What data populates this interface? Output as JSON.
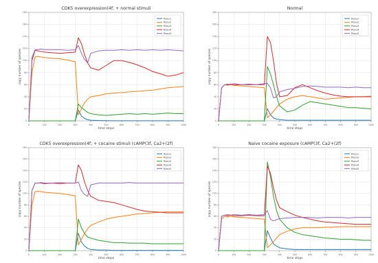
{
  "figure": {
    "colors": {
      "Rbsu1": "#1f77b4",
      "Rbsu2": "#ff7f0e",
      "Rbsu3": "#2ca02c",
      "Rbsu4": "#d62728",
      "Rbsu5": "#9467bd"
    }
  },
  "chart_data": [
    {
      "type": "line",
      "title": "CDK5 overexpression(4f; + normal stimuli",
      "xlabel": "time steps",
      "ylabel": "copy number of species",
      "xlim": [
        0,
        1000
      ],
      "ylim": [
        0,
        180
      ],
      "grid": true,
      "legend_position": "top-right",
      "x": [
        0,
        20,
        40,
        60,
        80,
        100,
        150,
        200,
        250,
        300,
        320,
        340,
        360,
        380,
        400,
        450,
        500,
        550,
        600,
        650,
        700,
        750,
        800,
        850,
        900,
        950,
        1000
      ],
      "series": [
        {
          "name": "Rbsu1",
          "values": [
            0,
            0,
            0,
            0,
            0,
            0,
            0,
            0,
            0,
            0,
            18,
            8,
            4,
            2,
            1,
            0.5,
            0.3,
            0.2,
            0.2,
            0.2,
            0.2,
            0.2,
            0.2,
            0.2,
            0.2,
            0.2,
            0.2
          ]
        },
        {
          "name": "Rbsu2",
          "values": [
            0,
            80,
            106,
            107,
            106,
            105,
            104,
            103,
            101,
            98,
            10,
            20,
            30,
            36,
            40,
            42,
            45,
            46,
            47,
            48,
            49,
            50,
            51,
            53,
            55,
            56,
            57
          ]
        },
        {
          "name": "Rbsu3",
          "values": [
            0,
            0,
            0,
            0,
            0,
            0,
            0,
            0,
            0,
            0,
            28,
            22,
            18,
            14,
            12,
            10,
            9,
            10,
            11,
            12,
            11,
            12,
            11,
            12,
            13,
            12,
            12
          ]
        },
        {
          "name": "Rbsu4",
          "values": [
            0,
            100,
            117,
            116,
            115,
            114,
            113,
            112,
            113,
            114,
            138,
            128,
            110,
            96,
            88,
            84,
            92,
            100,
            100,
            97,
            93,
            88,
            82,
            78,
            74,
            76,
            80
          ]
        },
        {
          "name": "Rbsu5",
          "values": [
            0,
            105,
            118,
            118,
            119,
            118,
            118,
            118,
            117,
            118,
            125,
            112,
            102,
            96,
            112,
            116,
            117,
            117,
            118,
            117,
            118,
            117,
            118,
            117,
            118,
            117,
            116
          ]
        }
      ]
    },
    {
      "type": "line",
      "title": "Normal",
      "xlabel": "time steps",
      "ylabel": "copy number of species",
      "xlim": [
        0,
        1000
      ],
      "ylim": [
        0,
        180
      ],
      "grid": true,
      "legend_position": "top-right",
      "x": [
        0,
        20,
        40,
        60,
        80,
        100,
        150,
        200,
        250,
        300,
        320,
        340,
        360,
        380,
        400,
        450,
        500,
        550,
        600,
        650,
        700,
        750,
        800,
        850,
        900,
        950,
        1000
      ],
      "series": [
        {
          "name": "Rbsu1",
          "values": [
            0,
            0,
            0,
            0,
            0,
            0,
            0,
            0,
            0,
            0,
            20,
            10,
            5,
            3,
            2,
            1,
            1,
            1,
            1,
            1,
            1,
            1,
            1,
            1,
            1,
            1,
            1
          ]
        },
        {
          "name": "Rbsu2",
          "values": [
            0,
            55,
            60,
            59,
            60,
            59,
            58,
            57,
            56,
            55,
            5,
            10,
            16,
            22,
            28,
            36,
            40,
            42,
            40,
            38,
            36,
            37,
            38,
            39,
            40,
            40,
            41
          ]
        },
        {
          "name": "Rbsu3",
          "values": [
            0,
            0,
            0,
            0,
            0,
            0,
            0,
            0,
            0,
            0,
            90,
            78,
            60,
            40,
            25,
            15,
            18,
            26,
            32,
            30,
            28,
            26,
            24,
            22,
            22,
            21,
            20
          ]
        },
        {
          "name": "Rbsu4",
          "values": [
            0,
            55,
            60,
            60,
            61,
            60,
            60,
            60,
            60,
            60,
            140,
            130,
            100,
            62,
            40,
            42,
            55,
            60,
            55,
            50,
            46,
            43,
            41,
            40,
            40,
            40,
            40
          ]
        },
        {
          "name": "Rbsu5",
          "values": [
            0,
            55,
            60,
            61,
            60,
            62,
            60,
            61,
            60,
            62,
            62,
            55,
            38,
            40,
            48,
            52,
            54,
            57,
            58,
            57,
            56,
            56,
            56,
            55,
            56,
            55,
            55
          ]
        }
      ]
    },
    {
      "type": "line",
      "title": "CDK5 overexpression(4f; + cocaine stimuli (cAMP(3f, Ca2+(2f)",
      "xlabel": "time steps",
      "ylabel": "copy number of species",
      "xlim": [
        0,
        1000
      ],
      "ylim": [
        0,
        180
      ],
      "grid": true,
      "legend_position": "top-right",
      "x": [
        0,
        20,
        40,
        60,
        80,
        100,
        150,
        200,
        250,
        300,
        320,
        340,
        360,
        380,
        400,
        450,
        500,
        550,
        600,
        650,
        700,
        750,
        800,
        850,
        900,
        950,
        1000
      ],
      "series": [
        {
          "name": "Rbsu1",
          "values": [
            0,
            0,
            0,
            0,
            0,
            0,
            0,
            0,
            0,
            0,
            30,
            15,
            8,
            4,
            2,
            1,
            1,
            0.5,
            0.5,
            0.5,
            0.5,
            0.5,
            0.5,
            0.5,
            0.5,
            0.5,
            0.5
          ]
        },
        {
          "name": "Rbsu2",
          "values": [
            0,
            80,
            103,
            104,
            103,
            102,
            101,
            100,
            98,
            96,
            10,
            20,
            30,
            38,
            44,
            50,
            55,
            58,
            60,
            62,
            64,
            65,
            66,
            67,
            68,
            68,
            68
          ]
        },
        {
          "name": "Rbsu3",
          "values": [
            0,
            0,
            0,
            0,
            0,
            0,
            0,
            0,
            0,
            0,
            55,
            40,
            30,
            24,
            22,
            18,
            16,
            14,
            14,
            13,
            13,
            13,
            12,
            12,
            12,
            12,
            12
          ]
        },
        {
          "name": "Rbsu4",
          "values": [
            0,
            105,
            118,
            118,
            118,
            117,
            118,
            117,
            118,
            118,
            150,
            140,
            120,
            105,
            95,
            88,
            86,
            84,
            80,
            76,
            72,
            69,
            68,
            67,
            66,
            66,
            66
          ]
        },
        {
          "name": "Rbsu5",
          "values": [
            0,
            105,
            118,
            118,
            119,
            118,
            118,
            119,
            118,
            118,
            120,
            105,
            98,
            95,
            115,
            118,
            118,
            118,
            118,
            119,
            118,
            118,
            118,
            118,
            118,
            118,
            118
          ]
        }
      ]
    },
    {
      "type": "line",
      "title": "Naive cocaine exposure (cAMP(3f, Ca2+(2f)",
      "xlabel": "time steps",
      "ylabel": "copy number of species",
      "xlim": [
        0,
        1000
      ],
      "ylim": [
        0,
        180
      ],
      "grid": true,
      "legend_position": "top-right",
      "x": [
        0,
        20,
        40,
        60,
        80,
        100,
        150,
        200,
        250,
        300,
        320,
        340,
        360,
        380,
        400,
        450,
        500,
        550,
        600,
        650,
        700,
        750,
        800,
        850,
        900,
        950,
        1000
      ],
      "series": [
        {
          "name": "Rbsu1",
          "values": [
            0,
            0,
            0,
            0,
            0,
            0,
            0,
            0,
            0,
            0,
            35,
            22,
            12,
            8,
            5,
            3,
            2,
            2,
            2,
            2,
            2,
            2,
            2,
            2,
            2,
            2,
            2
          ]
        },
        {
          "name": "Rbsu2",
          "values": [
            0,
            55,
            60,
            59,
            60,
            59,
            58,
            57,
            56,
            55,
            5,
            10,
            16,
            22,
            28,
            34,
            38,
            40,
            40,
            40,
            41,
            41,
            42,
            42,
            42,
            42,
            42
          ]
        },
        {
          "name": "Rbsu3",
          "values": [
            0,
            0,
            0,
            0,
            0,
            0,
            0,
            0,
            0,
            0,
            155,
            130,
            95,
            70,
            55,
            40,
            32,
            28,
            26,
            24,
            22,
            21,
            20,
            20,
            19,
            18,
            18
          ]
        },
        {
          "name": "Rbsu4",
          "values": [
            0,
            60,
            62,
            61,
            62,
            61,
            61,
            62,
            61,
            61,
            148,
            135,
            110,
            88,
            75,
            68,
            62,
            58,
            55,
            52,
            50,
            49,
            48,
            47,
            46,
            46,
            46
          ]
        },
        {
          "name": "Rbsu5",
          "values": [
            0,
            60,
            62,
            63,
            62,
            63,
            62,
            63,
            62,
            63,
            70,
            55,
            52,
            54,
            56,
            57,
            58,
            58,
            58,
            57,
            58,
            58,
            58,
            57,
            58,
            58,
            58
          ]
        }
      ]
    }
  ]
}
